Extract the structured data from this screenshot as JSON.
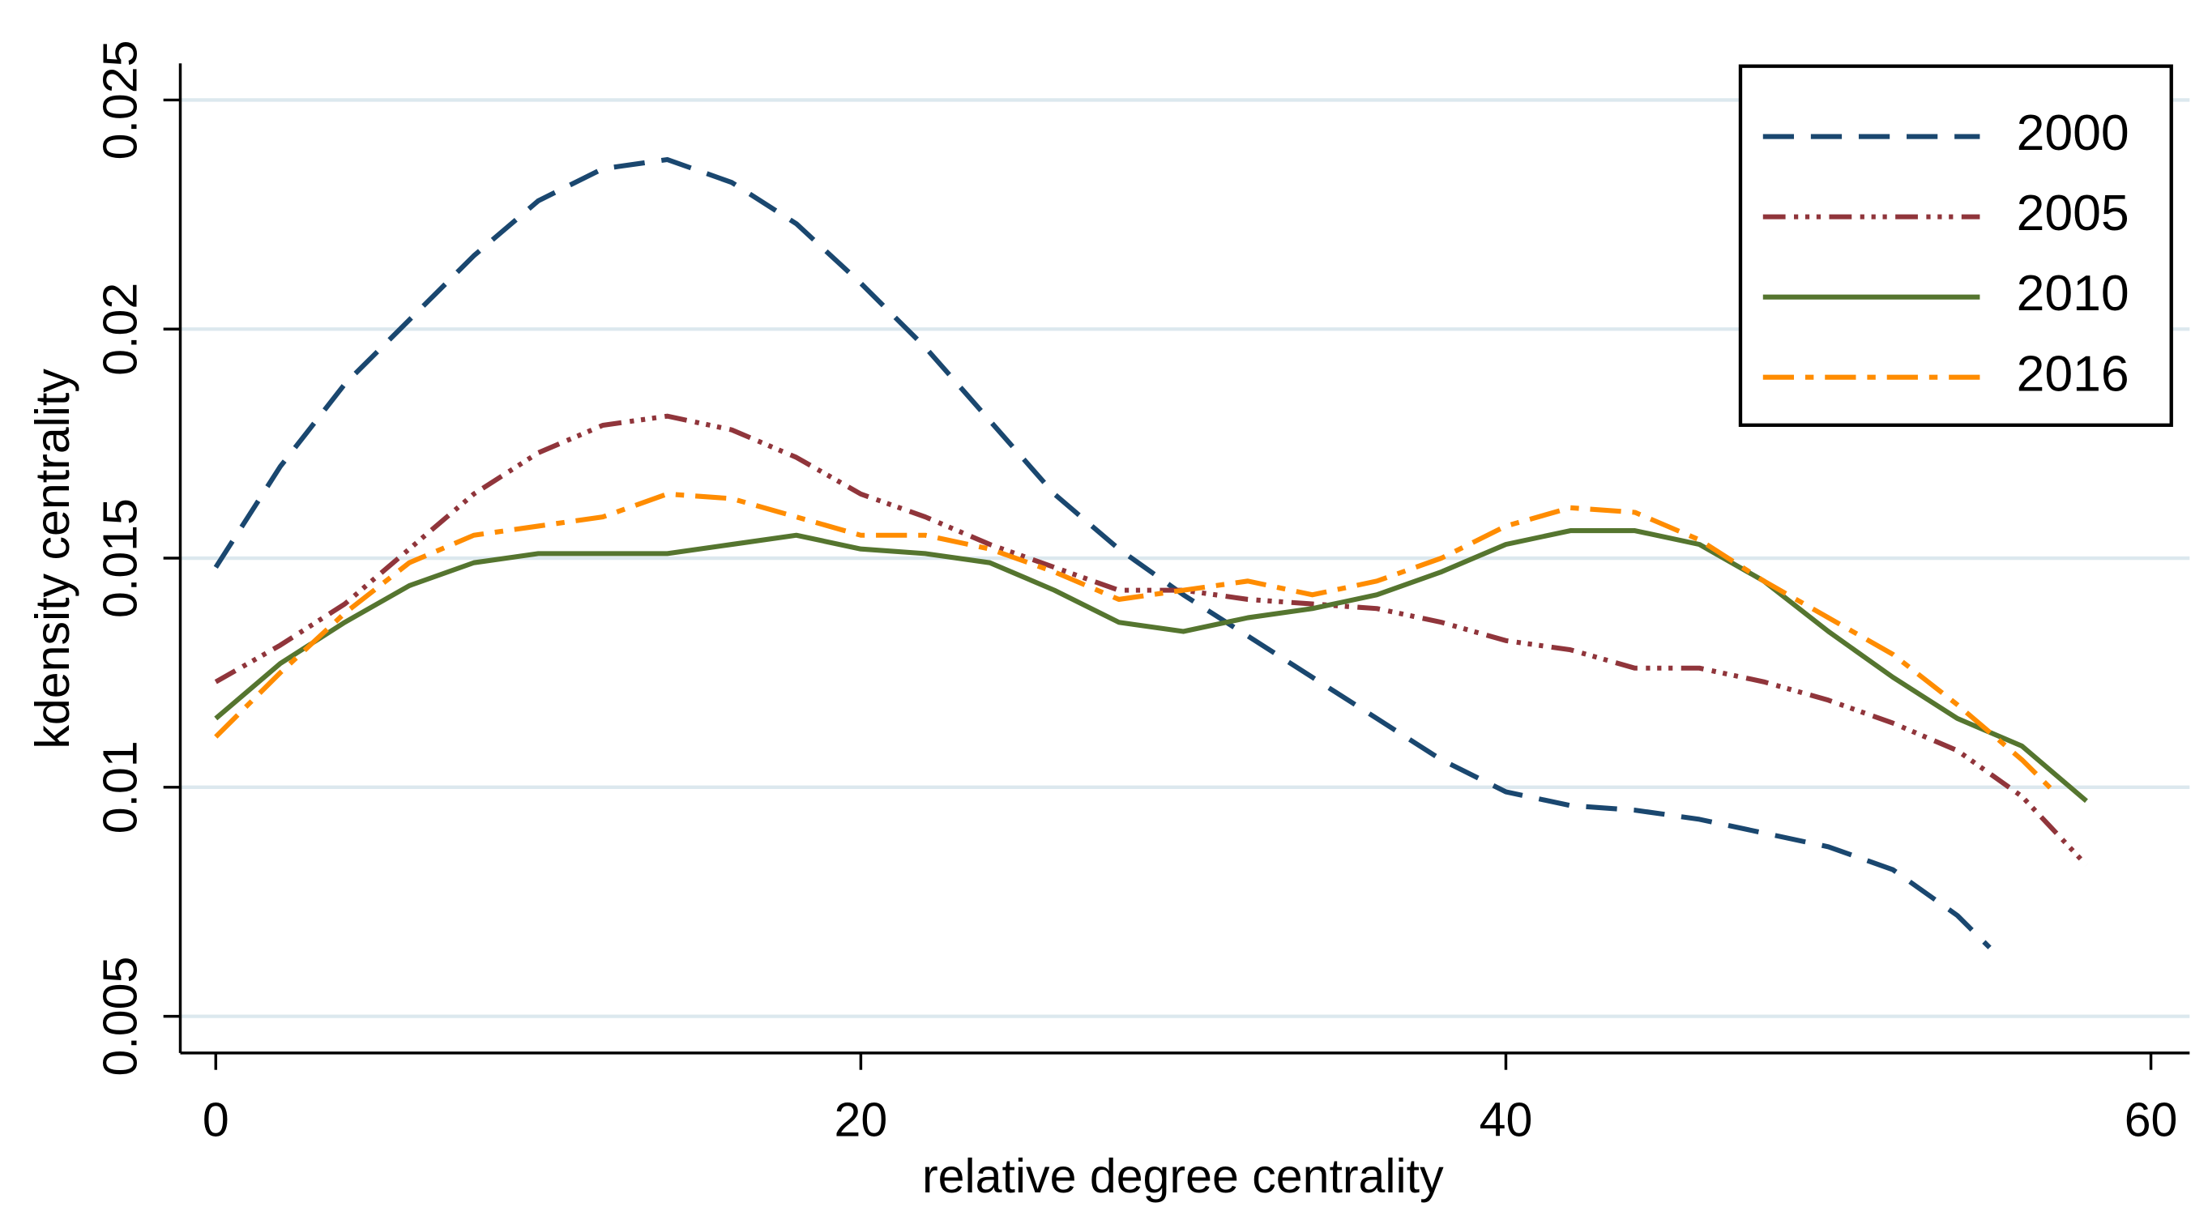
{
  "chart_data": {
    "type": "line",
    "x_label": "relative degree centrality",
    "y_label": "kdensity centrality",
    "xlim": [
      -1.1,
      61.2
    ],
    "ylim": [
      0.0042,
      0.0258
    ],
    "xticks": [
      0,
      20,
      40,
      60
    ],
    "yticks": [
      0.005,
      0.01,
      0.015,
      0.02,
      0.025
    ],
    "grid": true,
    "legend": "top-right",
    "series": [
      {
        "name": "2000",
        "color": "#1a476f",
        "dash": "22 12",
        "x": [
          0,
          2,
          4,
          6,
          8,
          10,
          12,
          14,
          16,
          18,
          20,
          22,
          24,
          26,
          28,
          30,
          32,
          34,
          36,
          38,
          40,
          42,
          44,
          46,
          48,
          50,
          52,
          54,
          55
        ],
        "values": [
          0.0148,
          0.017,
          0.0188,
          0.0202,
          0.0216,
          0.0228,
          0.0235,
          0.0237,
          0.0232,
          0.0223,
          0.021,
          0.0196,
          0.018,
          0.0164,
          0.0152,
          0.0142,
          0.0133,
          0.0124,
          0.0115,
          0.0106,
          0.0099,
          0.0096,
          0.0095,
          0.0093,
          0.009,
          0.0087,
          0.0082,
          0.0072,
          0.0065
        ]
      },
      {
        "name": "2005",
        "color": "#90353b",
        "dash": "16 6 3 5 3 5 3 6",
        "x": [
          0,
          2,
          4,
          6,
          8,
          10,
          12,
          14,
          16,
          18,
          20,
          22,
          24,
          26,
          28,
          30,
          32,
          34,
          36,
          38,
          40,
          42,
          44,
          46,
          48,
          50,
          52,
          54,
          56,
          58
        ],
        "values": [
          0.0123,
          0.0131,
          0.014,
          0.0152,
          0.0164,
          0.0173,
          0.0179,
          0.0181,
          0.0178,
          0.0172,
          0.0164,
          0.0159,
          0.0153,
          0.0148,
          0.0143,
          0.0143,
          0.0141,
          0.014,
          0.0139,
          0.0136,
          0.0132,
          0.013,
          0.0126,
          0.0126,
          0.0123,
          0.0119,
          0.0114,
          0.0108,
          0.0098,
          0.0083
        ]
      },
      {
        "name": "2010",
        "color": "#55752f",
        "dash": "none",
        "x": [
          0,
          2,
          4,
          6,
          8,
          10,
          12,
          14,
          16,
          18,
          20,
          22,
          24,
          26,
          28,
          30,
          32,
          34,
          36,
          38,
          40,
          42,
          44,
          46,
          48,
          50,
          52,
          54,
          56,
          58
        ],
        "values": [
          0.0115,
          0.0127,
          0.0136,
          0.0144,
          0.0149,
          0.0151,
          0.0151,
          0.0151,
          0.0153,
          0.0155,
          0.0152,
          0.0151,
          0.0149,
          0.0143,
          0.0136,
          0.0134,
          0.0137,
          0.0139,
          0.0142,
          0.0147,
          0.0153,
          0.0156,
          0.0156,
          0.0153,
          0.0145,
          0.0134,
          0.0124,
          0.0115,
          0.0109,
          0.0097
        ]
      },
      {
        "name": "2016",
        "color": "#ff8c00",
        "dash": "22 8 6 8",
        "x": [
          0,
          2,
          4,
          6,
          8,
          10,
          12,
          14,
          16,
          18,
          20,
          22,
          24,
          26,
          28,
          30,
          32,
          34,
          36,
          38,
          40,
          42,
          44,
          46,
          48,
          50,
          52,
          54,
          56,
          57
        ],
        "values": [
          0.0111,
          0.0125,
          0.0138,
          0.0149,
          0.0155,
          0.0157,
          0.0159,
          0.0164,
          0.0163,
          0.0159,
          0.0155,
          0.0155,
          0.0152,
          0.0147,
          0.0141,
          0.0143,
          0.0145,
          0.0142,
          0.0145,
          0.015,
          0.0157,
          0.0161,
          0.016,
          0.0154,
          0.0145,
          0.0137,
          0.0129,
          0.0118,
          0.0106,
          0.0099
        ]
      }
    ]
  }
}
